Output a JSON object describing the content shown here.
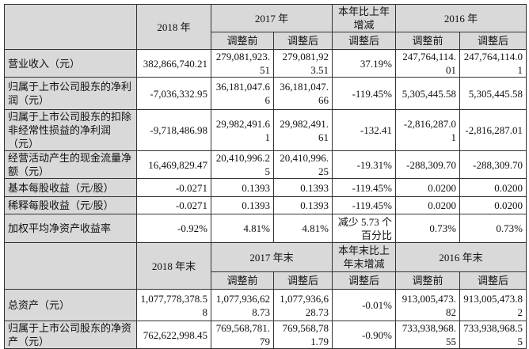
{
  "header1": {
    "year2018": "2018 年",
    "year2017": "2017 年",
    "change": "本年比上年增减",
    "year2016": "2016 年",
    "before": "调整前",
    "after": "调整后"
  },
  "rows1": [
    {
      "label": "营业收入（元）",
      "v": [
        "382,866,740.21",
        "279,081,923.51",
        "279,081,923.51",
        "37.19%",
        "247,764,114.01",
        "247,764,114.01"
      ]
    },
    {
      "label": "归属于上市公司股东的净利润（元）",
      "v": [
        "-7,036,332.95",
        "36,181,047.66",
        "36,181,047.66",
        "-119.45%",
        "5,305,445.58",
        "5,305,445.58"
      ]
    },
    {
      "label": "归属于上市公司股东的扣除非经常性损益的净利润（元）",
      "v": [
        "-9,718,486.98",
        "29,982,491.61",
        "29,982,491.61",
        "-132.41",
        "-2,816,287.01",
        "-2,816,287.01"
      ]
    },
    {
      "label": "经营活动产生的现金流量净额（元）",
      "v": [
        "16,469,829.47",
        "20,410,996.25",
        "20,410,996.25",
        "-19.31%",
        "-288,309.70",
        "-288,309.70"
      ]
    },
    {
      "label": "基本每股收益（元/股）",
      "v": [
        "-0.0271",
        "0.1393",
        "0.1393",
        "-119.45%",
        "0.0200",
        "0.0200"
      ]
    },
    {
      "label": "稀释每股收益（元/股）",
      "v": [
        "-0.0271",
        "0.1393",
        "0.1393",
        "-119.45%",
        "0.0200",
        "0.0200"
      ]
    },
    {
      "label": "加权平均净资产收益率",
      "v": [
        "-0.92%",
        "4.81%",
        "4.81%",
        "减少 5.73 个百分比",
        "0.73%",
        "0.73%"
      ]
    }
  ],
  "header2": {
    "year2018": "2018 年末",
    "year2017": "2017 年末",
    "change": "本年末比上年末增减",
    "year2016": "2016 年末",
    "before": "调整前",
    "after": "调整后"
  },
  "rows2": [
    {
      "label": "总资产（元）",
      "v": [
        "1,077,778,378.58",
        "1,077,936,628.73",
        "1,077,936,628.73",
        "-0.01%",
        "913,005,473.82",
        "913,005,473.82"
      ]
    },
    {
      "label": "归属于上市公司股东的净资产（元）",
      "v": [
        "762,622,998.45",
        "769,568,781.79",
        "769,568,781.79",
        "-0.90%",
        "733,938,968.55",
        "733,938,968.55"
      ]
    }
  ]
}
